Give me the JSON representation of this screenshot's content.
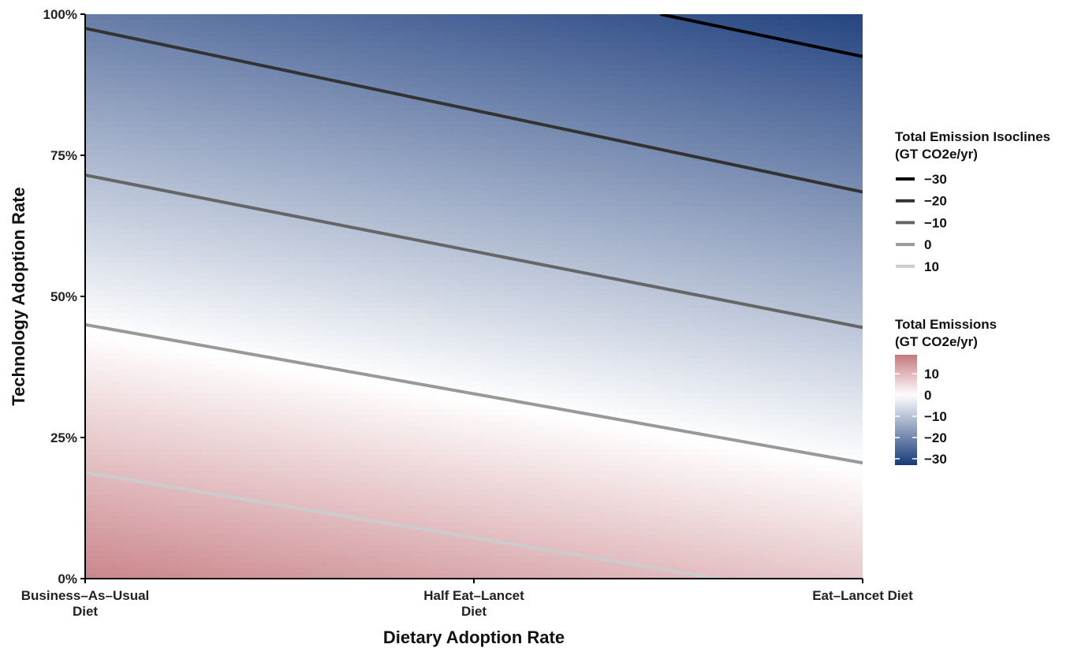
{
  "chart_data": {
    "type": "heatmap",
    "xlabel": "Dietary Adoption Rate",
    "ylabel": "Technology Adoption Rate",
    "x_categories": [
      {
        "line1": "Business–As–Usual",
        "line2": "Diet"
      },
      {
        "line1": "Half Eat–Lancet",
        "line2": "Diet"
      },
      {
        "line1": "Eat–Lancet Diet",
        "line2": ""
      }
    ],
    "xlim": [
      0,
      1
    ],
    "ylim": [
      0,
      1
    ],
    "y_ticks": [
      {
        "value": 0,
        "label": "0%"
      },
      {
        "value": 0.25,
        "label": "25%"
      },
      {
        "value": 0.5,
        "label": "50%"
      },
      {
        "value": 0.75,
        "label": "75%"
      },
      {
        "value": 1,
        "label": "100%"
      }
    ],
    "surface": {
      "description": "Total emissions as a linear function of dietary (x) and technology (y) adoption",
      "intercept": 17.0,
      "x_coef": -9.4,
      "y_coef": -38.6,
      "value_range": [
        -33,
        19
      ]
    },
    "color_scale": {
      "low_color": "#17397a",
      "mid_color": "#ffffff",
      "high_color": "#c4787e",
      "midpoint": 0
    },
    "isoclines": [
      {
        "level": -30,
        "label": "−30",
        "color": "#000000",
        "points": [
          [
            0.74,
            1.0
          ],
          [
            1.0,
            0.925
          ]
        ]
      },
      {
        "level": -20,
        "label": "−20",
        "color": "#333333",
        "points": [
          [
            0.0,
            0.975
          ],
          [
            1.0,
            0.685
          ]
        ]
      },
      {
        "level": -10,
        "label": "−10",
        "color": "#666666",
        "points": [
          [
            0.0,
            0.715
          ],
          [
            1.0,
            0.445
          ]
        ]
      },
      {
        "level": 0,
        "label": "0",
        "color": "#999999",
        "points": [
          [
            0.0,
            0.45
          ],
          [
            1.0,
            0.205
          ]
        ]
      },
      {
        "level": 10,
        "label": "10",
        "color": "#cccccc",
        "points": [
          [
            0.0,
            0.188
          ],
          [
            0.815,
            0.0
          ]
        ]
      }
    ],
    "legend_isoclines": {
      "title_line1": "Total Emission Isoclines",
      "title_line2": "(GT CO2e/yr)"
    },
    "legend_colorbar": {
      "title_line1": "Total Emissions",
      "title_line2": "(GT CO2e/yr)",
      "ticks": [
        {
          "value": 10,
          "label": "10"
        },
        {
          "value": 0,
          "label": "0"
        },
        {
          "value": -10,
          "label": "−10"
        },
        {
          "value": -20,
          "label": "−20"
        },
        {
          "value": -30,
          "label": "−30"
        }
      ]
    },
    "legend_placement": "right"
  }
}
